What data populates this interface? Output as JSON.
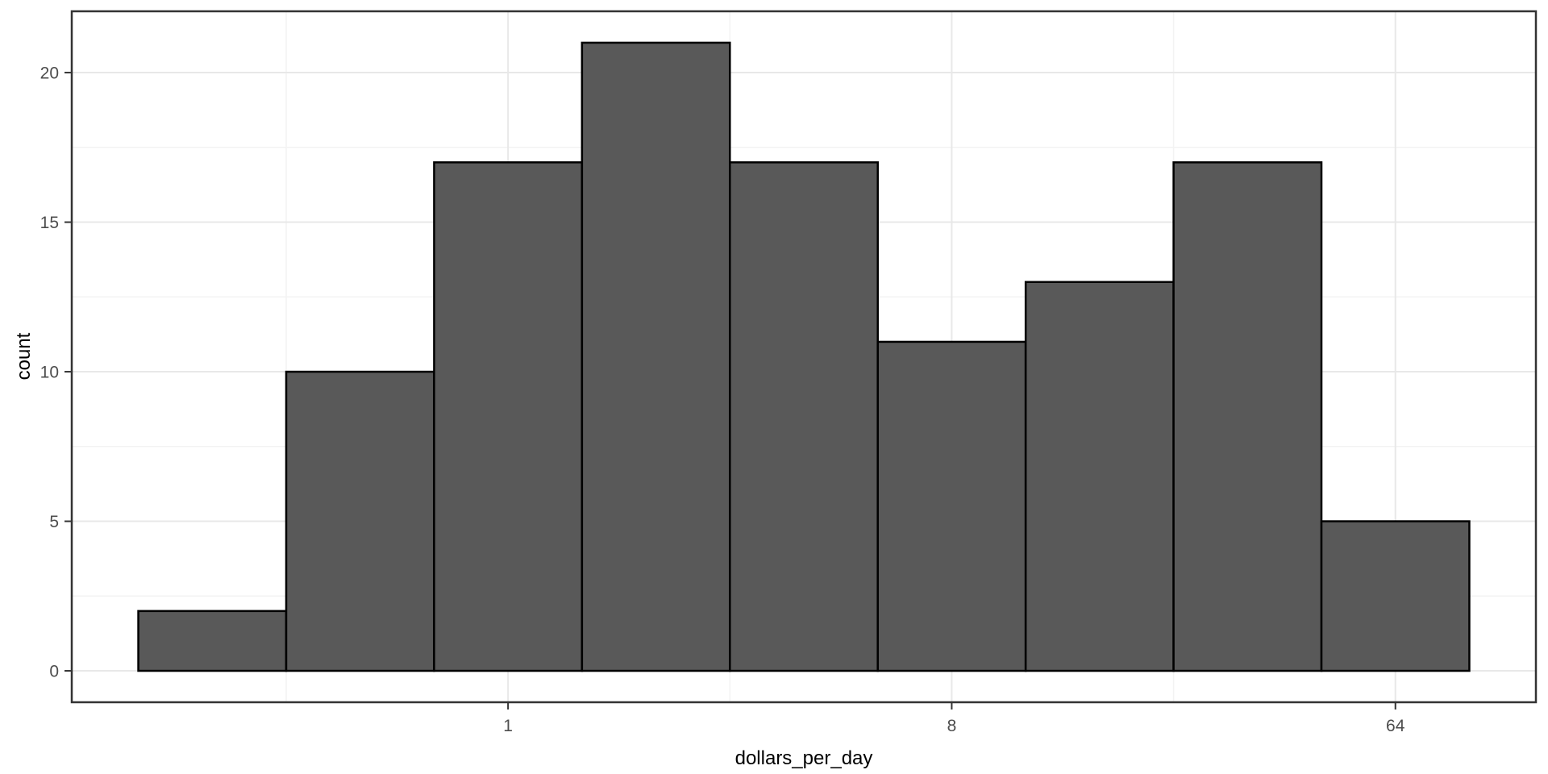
{
  "chart_data": {
    "type": "histogram",
    "title": "",
    "xlabel": "dollars_per_day",
    "ylabel": "count",
    "x_scale": "log2",
    "bin_width_log2": 1,
    "bins": [
      {
        "dollars_per_day": 0.25,
        "log2_center": -2,
        "count": 2
      },
      {
        "dollars_per_day": 0.5,
        "log2_center": -1,
        "count": 10
      },
      {
        "dollars_per_day": 1,
        "log2_center": 0,
        "count": 17
      },
      {
        "dollars_per_day": 2,
        "log2_center": 1,
        "count": 21
      },
      {
        "dollars_per_day": 4,
        "log2_center": 2,
        "count": 17
      },
      {
        "dollars_per_day": 8,
        "log2_center": 3,
        "count": 11
      },
      {
        "dollars_per_day": 16,
        "log2_center": 4,
        "count": 13
      },
      {
        "dollars_per_day": 32,
        "log2_center": 5,
        "count": 17
      },
      {
        "dollars_per_day": 64,
        "log2_center": 6,
        "count": 5
      }
    ],
    "x_ticks": [
      {
        "label": "1",
        "log2": 0
      },
      {
        "label": "8",
        "log2": 3
      },
      {
        "label": "64",
        "log2": 6
      }
    ],
    "x_minor_log2": [
      -1.5,
      1.5,
      4.5
    ],
    "y_ticks": [
      0,
      5,
      10,
      15,
      20
    ],
    "y_minor": [
      2.5,
      7.5,
      12.5,
      17.5
    ],
    "x_domain_log2": [
      -2.95,
      6.95
    ],
    "y_domain": [
      -1.05,
      22.05
    ],
    "legend": "none",
    "grid": "on",
    "colors": {
      "bar_fill": "#595959",
      "bar_stroke": "#000000",
      "panel_border": "#333333",
      "grid_major": "#e8e8e8",
      "grid_minor": "#f3f3f3",
      "tick_mark": "#333333",
      "tick_label": "#4d4d4d",
      "axis_title": "#000000",
      "panel_background": "#ffffff"
    }
  }
}
